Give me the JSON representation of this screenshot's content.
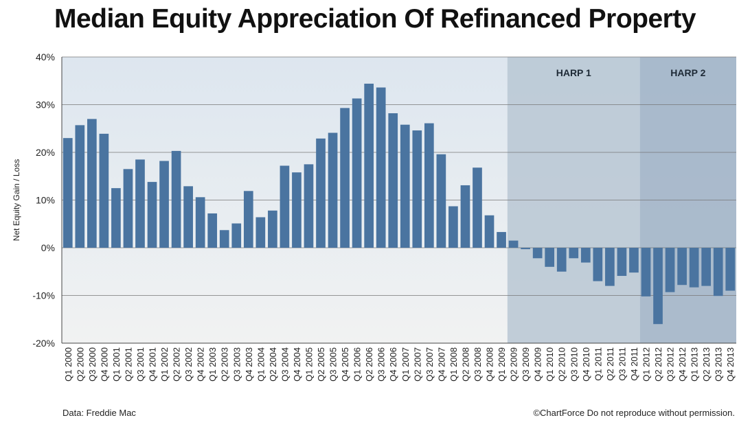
{
  "title": "Median Equity Appreciation Of Refinanced Property",
  "source": "Data: Freddie Mac",
  "credit": "©ChartForce  Do not reproduce without permission.",
  "colors": {
    "bar": "#4a74a0",
    "harp1_band": "#b9c7d4",
    "harp2_band": "#9fb2c5",
    "grid": "#777777"
  },
  "chart_data": {
    "type": "bar",
    "ylabel": "Net Equity Gain / Loss",
    "ylim": [
      -20,
      40
    ],
    "yticks": [
      40,
      30,
      20,
      10,
      0,
      -10,
      -20
    ],
    "ytick_labels": [
      "40%",
      "30%",
      "20%",
      "10%",
      "0%",
      "-10%",
      "-20%"
    ],
    "grid": true,
    "categories": [
      "Q1 2000",
      "Q2 2000",
      "Q3 2000",
      "Q4 2000",
      "Q1 2001",
      "Q2 2001",
      "Q3 2001",
      "Q4 2001",
      "Q1 2002",
      "Q2 2002",
      "Q3 2002",
      "Q4 2002",
      "Q1 2003",
      "Q2 2003",
      "Q3 2003",
      "Q4 2003",
      "Q1 2004",
      "Q2 2004",
      "Q3 2004",
      "Q4 2004",
      "Q1 2005",
      "Q2 2005",
      "Q3 2005",
      "Q4 2005",
      "Q1 2006",
      "Q2 2006",
      "Q3 2006",
      "Q4 2006",
      "Q1 2007",
      "Q2 2007",
      "Q3 2007",
      "Q4 2007",
      "Q1 2008",
      "Q2 2008",
      "Q3 2008",
      "Q4 2008",
      "Q1 2009",
      "Q2 2009",
      "Q3 2009",
      "Q4 2009",
      "Q1 2010",
      "Q2 2010",
      "Q3 2010",
      "Q4 2010",
      "Q1 2011",
      "Q2 2011",
      "Q3 2011",
      "Q4 2011",
      "Q1 2012",
      "Q2 2012",
      "Q3 2012",
      "Q4 2012",
      "Q1 2013",
      "Q2 2013",
      "Q3 2013",
      "Q4 2013"
    ],
    "values": [
      23.0,
      25.7,
      27.0,
      23.9,
      12.5,
      16.5,
      18.5,
      13.8,
      18.2,
      20.3,
      12.9,
      10.6,
      7.2,
      3.7,
      5.1,
      11.9,
      6.4,
      7.8,
      17.2,
      15.8,
      17.5,
      22.9,
      24.1,
      29.3,
      31.3,
      34.4,
      33.6,
      28.2,
      25.8,
      24.6,
      26.1,
      19.6,
      8.7,
      13.1,
      16.8,
      6.8,
      3.3,
      1.5,
      -0.3,
      -2.2,
      -4.0,
      -5.0,
      -2.2,
      -3.1,
      -7.0,
      -8.0,
      -5.9,
      -5.2,
      -10.2,
      -16.0,
      -9.3,
      -7.8,
      -8.3,
      -8.0,
      -10.1,
      -9.0
    ],
    "annotations": [
      {
        "label": "HARP 1",
        "start": "Q2 2009",
        "end": "Q4 2011"
      },
      {
        "label": "HARP 2",
        "start": "Q1 2012",
        "end": "Q4 2013"
      }
    ]
  }
}
